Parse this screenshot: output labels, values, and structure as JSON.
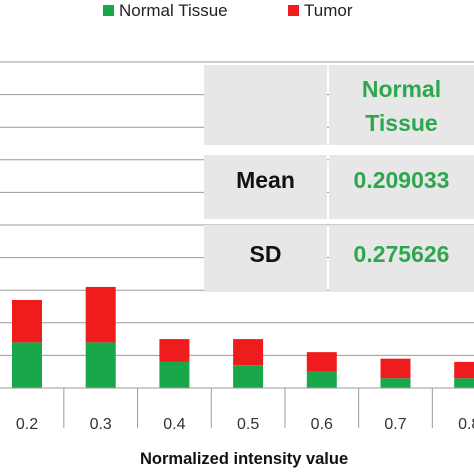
{
  "legend": {
    "items": [
      {
        "label": "Normal Tissue",
        "color": "#1aa64a"
      },
      {
        "label": "Tumor",
        "color": "#ee1c1c"
      }
    ]
  },
  "stats_table": {
    "header": "Normal Tissue",
    "header_line1": "Normal",
    "header_line2": "Tissue",
    "rows": [
      {
        "label": "Mean",
        "value": "0.209033"
      },
      {
        "label": "SD",
        "value": "0.275626"
      }
    ]
  },
  "chart_data": {
    "type": "bar",
    "stacked": true,
    "xlabel": "Normalized intensity value",
    "ylabel": "",
    "categories": [
      "0.2",
      "0.3",
      "0.4",
      "0.5",
      "0.6",
      "0.7",
      "0.8"
    ],
    "series": [
      {
        "name": "Normal Tissue",
        "color": "#1aa64a",
        "values": [
          14,
          14,
          8,
          7,
          5,
          3,
          3
        ]
      },
      {
        "name": "Tumor",
        "color": "#ee1c1c",
        "values": [
          13,
          17,
          7,
          8,
          6,
          6,
          5
        ]
      }
    ],
    "ylim": [
      0,
      100
    ],
    "grid": true,
    "legend_position": "top"
  }
}
